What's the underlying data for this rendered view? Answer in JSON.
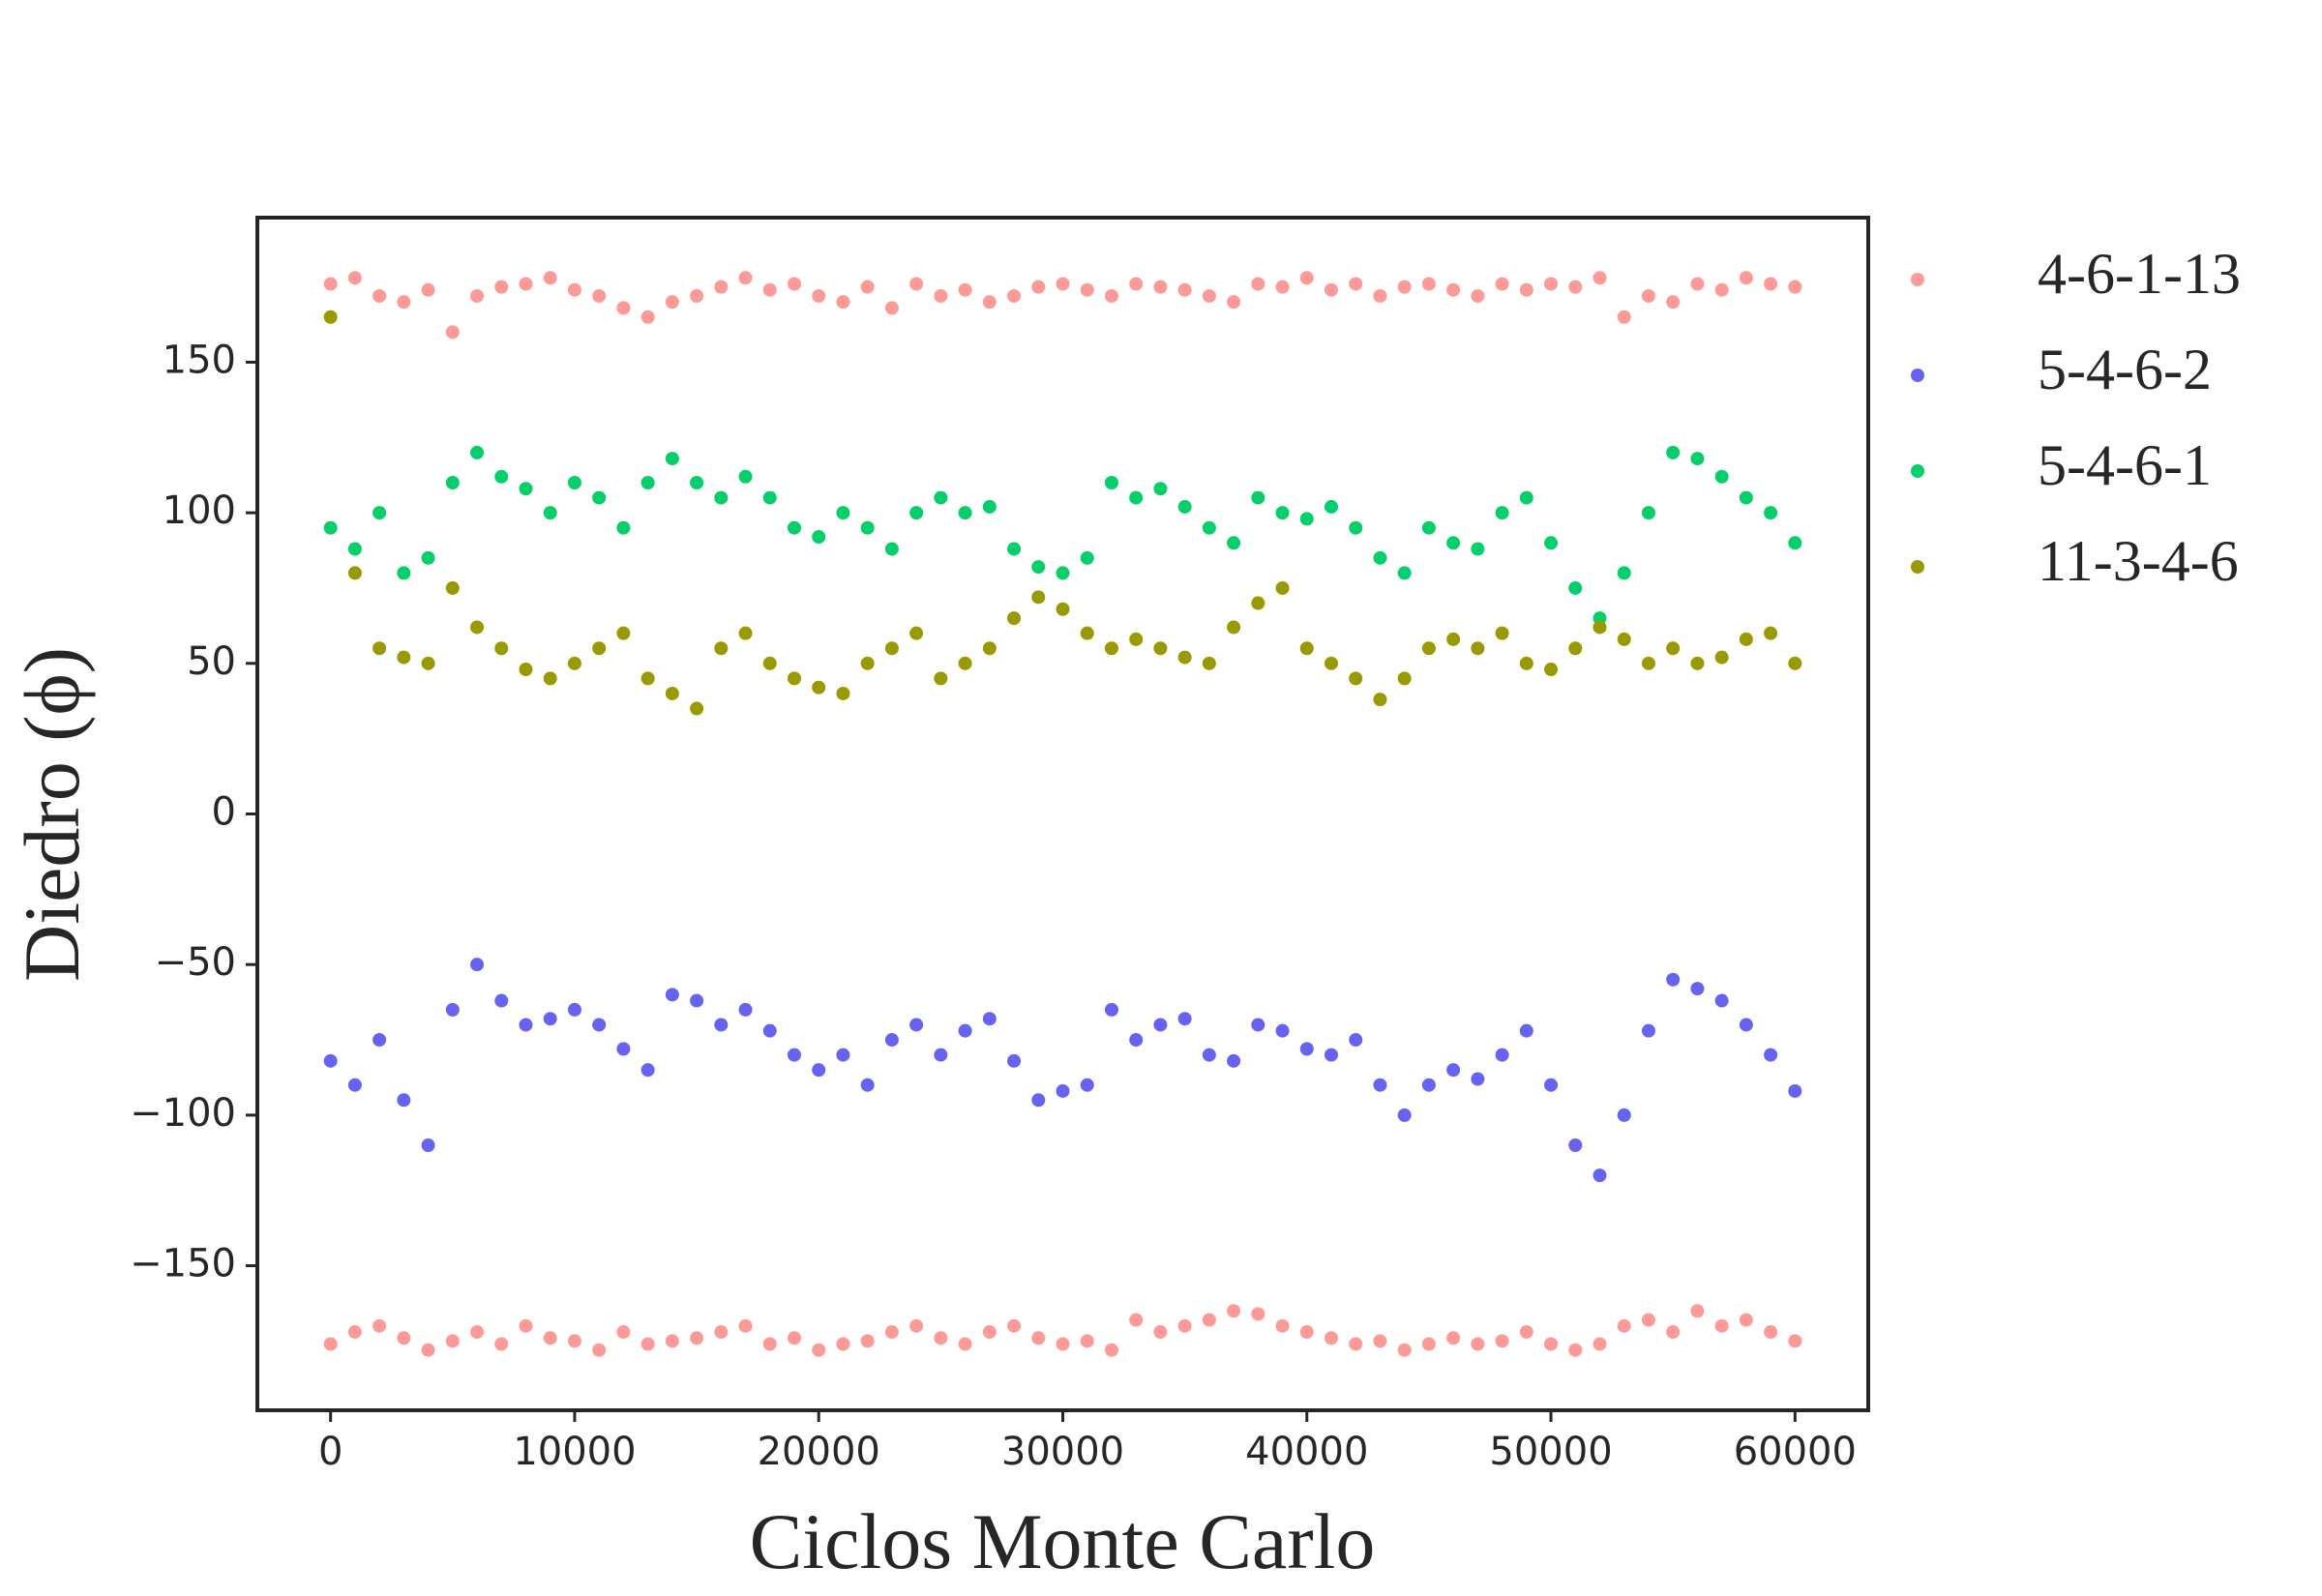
{
  "chart_data": {
    "type": "scatter",
    "xlabel": "Ciclos Monte Carlo",
    "ylabel": "Diedro (ϕ)",
    "xlim": [
      -3000,
      63000
    ],
    "ylim": [
      -198,
      198
    ],
    "xticks": [
      0,
      10000,
      20000,
      30000,
      40000,
      50000,
      60000
    ],
    "yticks": [
      {
        "value": -150,
        "label": "−150"
      },
      {
        "value": -100,
        "label": "−100"
      },
      {
        "value": -50,
        "label": "−50"
      },
      0,
      50,
      100,
      150
    ],
    "x": [
      0,
      1000,
      2000,
      3000,
      4000,
      5000,
      6000,
      7000,
      8000,
      9000,
      10000,
      11000,
      12000,
      13000,
      14000,
      15000,
      16000,
      17000,
      18000,
      19000,
      20000,
      21000,
      22000,
      23000,
      24000,
      25000,
      26000,
      27000,
      28000,
      29000,
      30000,
      31000,
      32000,
      33000,
      34000,
      35000,
      36000,
      37000,
      38000,
      39000,
      40000,
      41000,
      42000,
      43000,
      44000,
      45000,
      46000,
      47000,
      48000,
      49000,
      50000,
      51000,
      52000,
      53000,
      54000,
      55000,
      56000,
      57000,
      58000,
      59000,
      60000
    ],
    "legend": "outside-right",
    "series": [
      {
        "name": "4-6-1-13",
        "color": "#fd9a98",
        "x": [
          0,
          1000,
          2000,
          3000,
          4000,
          5000,
          6000,
          7000,
          8000,
          9000,
          10000,
          11000,
          12000,
          13000,
          14000,
          15000,
          16000,
          17000,
          18000,
          19000,
          20000,
          21000,
          22000,
          23000,
          24000,
          25000,
          26000,
          27000,
          28000,
          29000,
          30000,
          31000,
          32000,
          33000,
          34000,
          35000,
          36000,
          37000,
          38000,
          39000,
          40000,
          41000,
          42000,
          43000,
          44000,
          45000,
          46000,
          47000,
          48000,
          49000,
          50000,
          51000,
          52000,
          53000,
          54000,
          55000,
          56000,
          57000,
          58000,
          59000,
          60000,
          0,
          1000,
          2000,
          3000,
          4000,
          5000,
          6000,
          7000,
          8000,
          9000,
          10000,
          11000,
          12000,
          13000,
          14000,
          15000,
          16000,
          17000,
          18000,
          19000,
          20000,
          21000,
          22000,
          23000,
          24000,
          25000,
          26000,
          27000,
          28000,
          29000,
          30000,
          31000,
          32000,
          33000,
          34000,
          35000,
          36000,
          37000,
          38000,
          39000,
          40000,
          41000,
          42000,
          43000,
          44000,
          45000,
          46000,
          47000,
          48000,
          49000,
          50000,
          51000,
          52000,
          53000,
          54000,
          55000,
          56000,
          57000,
          58000,
          59000,
          60000
        ],
        "values": [
          176,
          178,
          172,
          170,
          174,
          160,
          172,
          175,
          176,
          178,
          174,
          172,
          168,
          165,
          170,
          172,
          175,
          178,
          174,
          176,
          172,
          170,
          175,
          168,
          176,
          172,
          174,
          170,
          172,
          175,
          176,
          174,
          172,
          176,
          175,
          174,
          172,
          170,
          176,
          175,
          178,
          174,
          176,
          172,
          175,
          176,
          174,
          172,
          176,
          174,
          176,
          175,
          178,
          165,
          172,
          170,
          176,
          174,
          178,
          176,
          175,
          -176,
          -172,
          -170,
          -174,
          -178,
          -175,
          -172,
          -176,
          -170,
          -174,
          -175,
          -178,
          -172,
          -176,
          -175,
          -174,
          -172,
          -170,
          -176,
          -174,
          -178,
          -176,
          -175,
          -172,
          -170,
          -174,
          -176,
          -172,
          -170,
          -174,
          -176,
          -175,
          -178,
          -168,
          -172,
          -170,
          -168,
          -165,
          -166,
          -170,
          -172,
          -174,
          -176,
          -175,
          -178,
          -176,
          -174,
          -176,
          -175,
          -172,
          -176,
          -178,
          -176,
          -170,
          -168,
          -172,
          -165,
          -170,
          -168,
          -172,
          -175
        ]
      },
      {
        "name": "5-4-6-2",
        "color": "#6763f2",
        "values": [
          -82,
          -90,
          -75,
          -95,
          -110,
          -65,
          -50,
          -62,
          -70,
          -68,
          -65,
          -70,
          -78,
          -85,
          -60,
          -62,
          -70,
          -65,
          -72,
          -80,
          -85,
          -80,
          -90,
          -75,
          -70,
          -80,
          -72,
          -68,
          -82,
          -95,
          -92,
          -90,
          -65,
          -75,
          -70,
          -68,
          -80,
          -82,
          -70,
          -72,
          -78,
          -80,
          -75,
          -90,
          -100,
          -90,
          -85,
          -88,
          -80,
          -72,
          -90,
          -110,
          -120,
          -100,
          -72,
          -55,
          -58,
          -62,
          -70,
          -80,
          -92
        ]
      },
      {
        "name": "5-4-6-1",
        "color": "#05cf6b",
        "values": [
          95,
          88,
          100,
          80,
          85,
          110,
          120,
          112,
          108,
          100,
          110,
          105,
          95,
          110,
          118,
          110,
          105,
          112,
          105,
          95,
          92,
          100,
          95,
          88,
          100,
          105,
          100,
          102,
          88,
          82,
          80,
          85,
          110,
          105,
          108,
          102,
          95,
          90,
          105,
          100,
          98,
          102,
          95,
          85,
          80,
          95,
          90,
          88,
          100,
          105,
          90,
          75,
          65,
          80,
          100,
          120,
          118,
          112,
          105,
          100,
          90
        ]
      },
      {
        "name": "11-3-4-6",
        "color": "#999900",
        "values": [
          165,
          80,
          55,
          52,
          50,
          75,
          62,
          55,
          48,
          45,
          50,
          55,
          60,
          45,
          40,
          35,
          55,
          60,
          50,
          45,
          42,
          40,
          50,
          55,
          60,
          45,
          50,
          55,
          65,
          72,
          68,
          60,
          55,
          58,
          55,
          52,
          50,
          62,
          70,
          75,
          55,
          50,
          45,
          38,
          45,
          55,
          58,
          55,
          60,
          50,
          48,
          55,
          62,
          58,
          50,
          55,
          50,
          52,
          58,
          60,
          50
        ]
      }
    ]
  }
}
